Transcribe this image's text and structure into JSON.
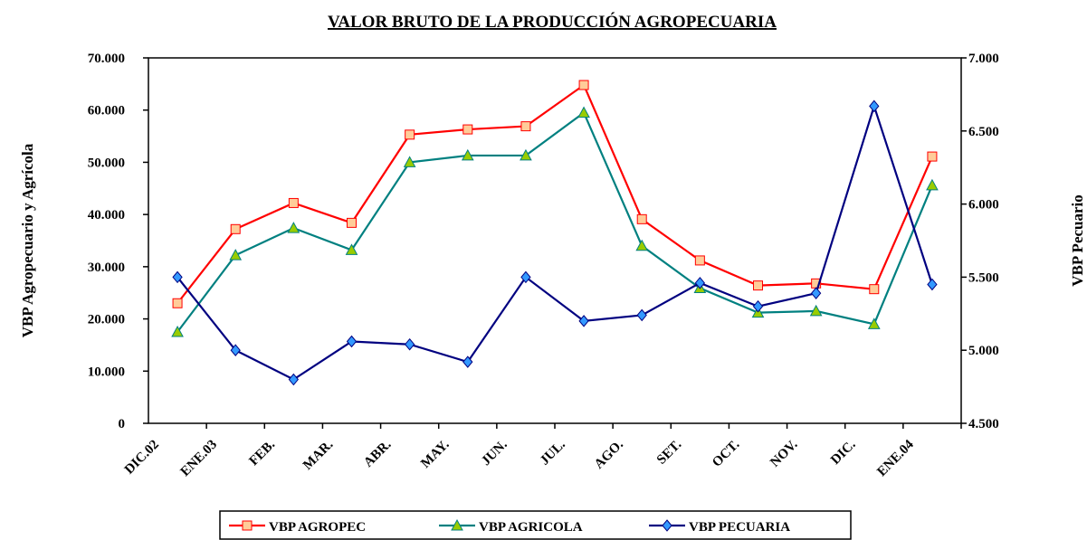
{
  "chart_data": {
    "type": "line",
    "title": "VALOR BRUTO DE LA PRODUCCIÓN AGROPECUARIA",
    "ylabel": "VBP Agropecuario y Agrícola",
    "y2label": "VBP Pecuario",
    "categories": [
      "DIC.02",
      "ENE.03",
      "FEB.",
      "MAR.",
      "ABR.",
      "MAY.",
      "JUN.",
      "JUL.",
      "AGO.",
      "SET.",
      "OCT.",
      "NOV.",
      "DIC.",
      "ENE.04"
    ],
    "series": [
      {
        "name": "VBP AGROPEC",
        "color": "#ff0000",
        "marker_color": "#ffcc99",
        "marker": "square",
        "values": [
          23000,
          37200,
          42200,
          38400,
          55300,
          56300,
          56900,
          64800,
          39100,
          31200,
          26400,
          26800,
          25700,
          51100
        ]
      },
      {
        "name": "VBP AGRICOLA",
        "color": "#008080",
        "marker_color": "#99cc00",
        "marker": "triangle",
        "values": [
          17500,
          32200,
          37400,
          33200,
          50000,
          51300,
          51300,
          59500,
          34000,
          25900,
          21200,
          21500,
          19000,
          45600
        ]
      },
      {
        "name": "VBP PECUARIA",
        "color": "#000080",
        "marker_color": "#3399ff",
        "marker": "diamond",
        "axis": "y2",
        "values": [
          5500,
          5000,
          4800,
          5060,
          5040,
          4920,
          5500,
          5200,
          5240,
          5460,
          5300,
          5390,
          6670,
          5450
        ]
      }
    ],
    "ylim": [
      0,
      70000
    ],
    "yticks": [
      0,
      {
        "value": 10000,
        "label": "10.000"
      },
      {
        "value": 20000,
        "label": "20.000"
      },
      {
        "value": 30000,
        "label": "30.000"
      },
      {
        "value": 40000,
        "label": "40.000"
      },
      {
        "value": 50000,
        "label": "50.000"
      },
      {
        "value": 60000,
        "label": "60.000"
      },
      {
        "value": 70000,
        "label": "70.000"
      }
    ],
    "y2lim": [
      4500,
      7000
    ],
    "y2ticks": [
      {
        "value": 4500,
        "label": "4.500"
      },
      {
        "value": 5000,
        "label": "5.000"
      },
      {
        "value": 5500,
        "label": "5.500"
      },
      {
        "value": 6000,
        "label": "6.000"
      },
      {
        "value": 6500,
        "label": "6.500"
      },
      {
        "value": 7000,
        "label": "7.000"
      }
    ],
    "grid": false,
    "legend": "bottom"
  }
}
